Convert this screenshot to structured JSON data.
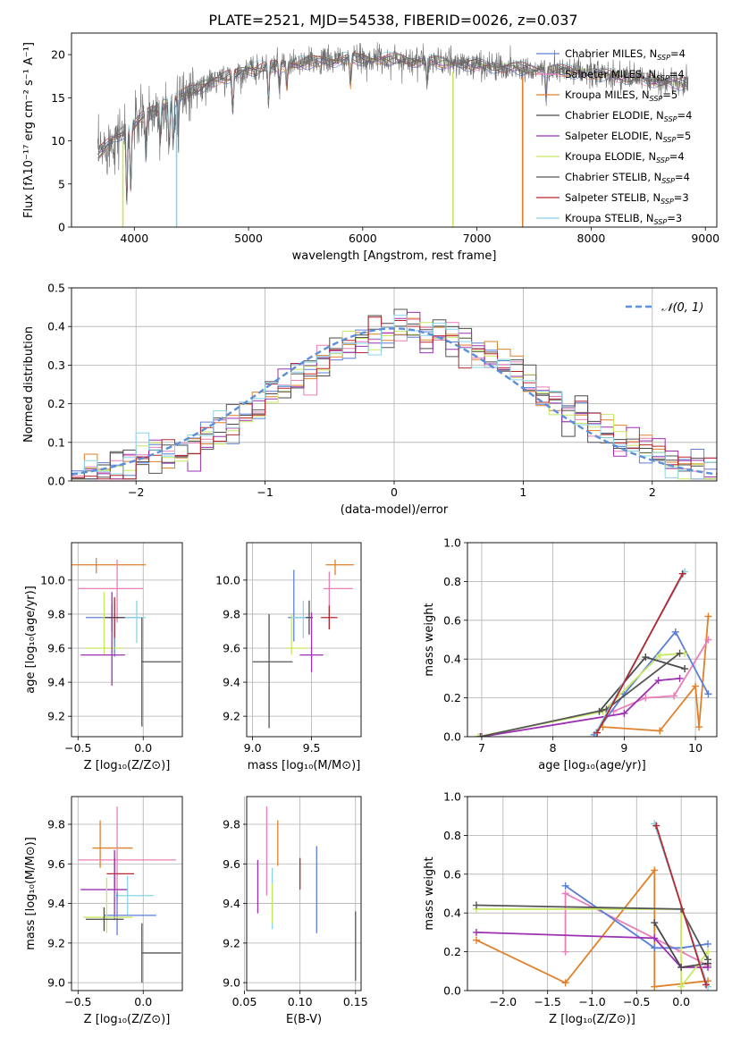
{
  "figure_title": "PLATE=2521, MJD=54538, FIBERID=0026, z=0.037",
  "colors": {
    "Chabrier MILES": "#5b7fd9",
    "Salpeter MILES": "#ea7fb8",
    "Kroupa MILES": "#e0802a",
    "Chabrier ELODIE": "#4a4a4a",
    "Salpeter ELODIE": "#9b30b0",
    "Kroupa ELODIE": "#c7e860",
    "Chabrier STELIB": "#555555",
    "Salpeter STELIB": "#b8272f",
    "Kroupa STELIB": "#8ad4e8"
  },
  "chart_data": [
    {
      "id": "spectrum",
      "type": "line",
      "title": "",
      "xlabel": "wavelength [Angstrom, rest frame]",
      "ylabel": "Flux [fλ10⁻¹⁷ erg cm⁻² s⁻¹ A⁻¹]",
      "xlim": [
        3450,
        9100
      ],
      "ylim": [
        0,
        22.5
      ],
      "xticks": [
        4000,
        5000,
        6000,
        7000,
        8000,
        9000
      ],
      "yticks": [
        0,
        5,
        10,
        15,
        20
      ],
      "legend_position": "top-right",
      "legend": [
        {
          "label": "Chabrier MILES, N",
          "sub": "SSP",
          "suffix": "=4",
          "key": "Chabrier MILES"
        },
        {
          "label": "Salpeter MILES, N",
          "sub": "SSP",
          "suffix": "=4",
          "key": "Salpeter MILES"
        },
        {
          "label": "Kroupa MILES, N",
          "sub": "SSP",
          "suffix": "=5",
          "key": "Kroupa MILES"
        },
        {
          "label": "Chabrier ELODIE, N",
          "sub": "SSP",
          "suffix": "=4",
          "key": "Chabrier ELODIE"
        },
        {
          "label": "Salpeter ELODIE, N",
          "sub": "SSP",
          "suffix": "=5",
          "key": "Salpeter ELODIE"
        },
        {
          "label": "Kroupa ELODIE, N",
          "sub": "SSP",
          "suffix": "=4",
          "key": "Kroupa ELODIE"
        },
        {
          "label": "Chabrier STELIB, N",
          "sub": "SSP",
          "suffix": "=4",
          "key": "Chabrier STELIB"
        },
        {
          "label": "Salpeter STELIB, N",
          "sub": "SSP",
          "suffix": "=3",
          "key": "Salpeter STELIB"
        },
        {
          "label": "Kroupa STELIB, N",
          "sub": "SSP",
          "suffix": "=3",
          "key": "Kroupa STELIB"
        }
      ],
      "continuum": [
        [
          3680,
          8.5
        ],
        [
          3800,
          10.0
        ],
        [
          3950,
          11.5
        ],
        [
          4100,
          13.0
        ],
        [
          4300,
          14.5
        ],
        [
          4500,
          15.8
        ],
        [
          4700,
          17.0
        ],
        [
          4900,
          17.8
        ],
        [
          5100,
          18.5
        ],
        [
          5300,
          18.8
        ],
        [
          5600,
          19.2
        ],
        [
          5900,
          19.5
        ],
        [
          6200,
          19.5
        ],
        [
          6500,
          19.3
        ],
        [
          6800,
          19.0
        ],
        [
          7100,
          18.7
        ],
        [
          7400,
          18.4
        ],
        [
          7700,
          18.2
        ],
        [
          8000,
          17.8
        ],
        [
          8300,
          17.4
        ],
        [
          8600,
          16.9
        ],
        [
          8850,
          16.6
        ]
      ],
      "absorption_lines": [
        [
          3934,
          8
        ],
        [
          3969,
          7
        ],
        [
          4102,
          5
        ],
        [
          4227,
          4
        ],
        [
          4305,
          5
        ],
        [
          4340,
          5
        ],
        [
          4384,
          4
        ],
        [
          4861,
          4
        ],
        [
          5175,
          4
        ],
        [
          5270,
          2.5
        ],
        [
          5335,
          2.5
        ],
        [
          5893,
          3
        ],
        [
          6563,
          2.5
        ],
        [
          7605,
          3
        ]
      ],
      "model_dropouts": [
        {
          "key": "Kroupa ELODIE",
          "x": 3900
        },
        {
          "key": "Kroupa STELIB",
          "x": 4370
        },
        {
          "key": "Kroupa ELODIE",
          "x": 6790
        },
        {
          "key": "Kroupa MILES",
          "x": 7400
        }
      ],
      "observed_noise_color": "#6b6b6b"
    },
    {
      "id": "residuals",
      "type": "step",
      "xlabel": "(data-model)/error",
      "ylabel": "Normed distribution",
      "xlim": [
        -2.5,
        2.5
      ],
      "ylim": [
        0,
        0.5
      ],
      "xticks": [
        -2,
        -1,
        0,
        1,
        2
      ],
      "yticks": [
        0.0,
        0.1,
        0.2,
        0.3,
        0.4,
        0.5
      ],
      "bin_width": 0.1,
      "bin_start": -2.5,
      "legend": {
        "label": "𝒩(0, 1)",
        "color": "#5b8fd9"
      },
      "legend_position": "top-right",
      "grid": true
    },
    {
      "id": "age_vs_Z",
      "type": "errorbar",
      "xlabel": "Z [log₁₀(Z/Z⊙)]",
      "ylabel": "age [log₁₀(age/yr)]",
      "xlim": [
        -0.55,
        0.3
      ],
      "ylim": [
        9.08,
        10.22
      ],
      "xticks": [
        -0.5,
        0.0
      ],
      "yticks": [
        9.2,
        9.4,
        9.6,
        9.8,
        10.0
      ],
      "points": [
        {
          "key": "Kroupa MILES",
          "x": -0.36,
          "xerr": [
            0.2,
            0.38
          ],
          "y": 10.09,
          "yerr": [
            0.05,
            0.04
          ]
        },
        {
          "key": "Salpeter MILES",
          "x": -0.2,
          "xerr": [
            0.3,
            0.2
          ],
          "y": 9.95,
          "yerr": [
            0.2,
            0.17
          ]
        },
        {
          "key": "Chabrier MILES",
          "x": -0.22,
          "xerr": [
            0.22,
            0.2
          ],
          "y": 9.78,
          "yerr": [
            0.23,
            0.09
          ]
        },
        {
          "key": "Kroupa STELIB",
          "x": -0.05,
          "xerr": [
            0.1,
            0.07
          ],
          "y": 9.78,
          "yerr": [
            0.15,
            0.1
          ]
        },
        {
          "key": "Salpeter STELIB",
          "x": -0.22,
          "xerr": [
            0.05,
            0.05
          ],
          "y": 9.78,
          "yerr": [
            0.12,
            0.12
          ]
        },
        {
          "key": "Chabrier ELODIE",
          "x": -0.24,
          "xerr": [
            0.06,
            0.1
          ],
          "y": 9.78,
          "yerr": [
            0.08,
            0.08
          ]
        },
        {
          "key": "Kroupa ELODIE",
          "x": -0.3,
          "xerr": [
            0.15,
            0.15
          ],
          "y": 9.6,
          "yerr": [
            0.04,
            0.33
          ]
        },
        {
          "key": "Salpeter ELODIE",
          "x": -0.24,
          "xerr": [
            0.24,
            0.1
          ],
          "y": 9.56,
          "yerr": [
            0.18,
            0.37
          ]
        },
        {
          "key": "Chabrier STELIB",
          "x": -0.01,
          "xerr": [
            0.0,
            0.3
          ],
          "y": 9.52,
          "yerr": [
            0.38,
            0.26
          ]
        }
      ]
    },
    {
      "id": "age_vs_mass",
      "type": "errorbar",
      "xlabel": "mass [log₁₀(M/M⊙)]",
      "ylabel": "",
      "xlim": [
        8.95,
        9.92
      ],
      "ylim": [
        9.08,
        10.22
      ],
      "xticks": [
        9.0,
        9.5
      ],
      "yticks": [
        9.2,
        9.4,
        9.6,
        9.8,
        10.0
      ],
      "points": [
        {
          "key": "Kroupa MILES",
          "x": 9.7,
          "xerr": [
            0.08,
            0.16
          ],
          "y": 10.09,
          "yerr": [
            0.06,
            0.03
          ]
        },
        {
          "key": "Salpeter MILES",
          "x": 9.65,
          "xerr": [
            0.05,
            0.2
          ],
          "y": 9.95,
          "yerr": [
            0.24,
            0.1
          ]
        },
        {
          "key": "Chabrier MILES",
          "x": 9.35,
          "xerr": [
            0.05,
            0.1
          ],
          "y": 9.78,
          "yerr": [
            0.14,
            0.28
          ]
        },
        {
          "key": "Kroupa STELIB",
          "x": 9.43,
          "xerr": [
            0.1,
            0.07
          ],
          "y": 9.78,
          "yerr": [
            0.12,
            0.1
          ]
        },
        {
          "key": "Salpeter STELIB",
          "x": 9.65,
          "xerr": [
            0.07,
            0.07
          ],
          "y": 9.78,
          "yerr": [
            0.07,
            0.07
          ]
        },
        {
          "key": "Chabrier ELODIE",
          "x": 9.48,
          "xerr": [
            0.03,
            0.03
          ],
          "y": 9.78,
          "yerr": [
            0.1,
            0.1
          ]
        },
        {
          "key": "Kroupa ELODIE",
          "x": 9.33,
          "xerr": [
            0.05,
            0.14
          ],
          "y": 9.6,
          "yerr": [
            0.04,
            0.2
          ]
        },
        {
          "key": "Salpeter ELODIE",
          "x": 9.5,
          "xerr": [
            0.1,
            0.1
          ],
          "y": 9.56,
          "yerr": [
            0.1,
            0.25
          ]
        },
        {
          "key": "Chabrier STELIB",
          "x": 9.14,
          "xerr": [
            0.14,
            0.2
          ],
          "y": 9.52,
          "yerr": [
            0.39,
            0.28
          ]
        }
      ]
    },
    {
      "id": "weight_vs_age",
      "type": "line",
      "xlabel": "age [log₁₀(age/yr)]",
      "ylabel": "mass weight",
      "xlim": [
        6.8,
        10.3
      ],
      "ylim": [
        0,
        1.0
      ],
      "xticks": [
        7,
        8,
        9,
        10
      ],
      "yticks": [
        0.0,
        0.2,
        0.4,
        0.6,
        0.8,
        1.0
      ],
      "grid": true,
      "series": [
        {
          "key": "Kroupa MILES",
          "x": [
            8.7,
            9.5,
            10.0,
            10.05,
            10.18
          ],
          "y": [
            0.05,
            0.03,
            0.26,
            0.05,
            0.62
          ]
        },
        {
          "key": "Salpeter MILES",
          "x": [
            8.85,
            9.3,
            9.7,
            10.18
          ],
          "y": [
            0.13,
            0.2,
            0.21,
            0.5
          ]
        },
        {
          "key": "Chabrier MILES",
          "x": [
            8.58,
            9.0,
            9.72,
            10.18
          ],
          "y": [
            0.01,
            0.22,
            0.54,
            0.22
          ]
        },
        {
          "key": "Salpeter ELODIE",
          "x": [
            7.0,
            9.0,
            9.48,
            9.78
          ],
          "y": [
            0.0,
            0.12,
            0.29,
            0.3
          ]
        },
        {
          "key": "Kroupa ELODIE",
          "x": [
            6.95,
            8.7,
            9.5,
            9.85
          ],
          "y": [
            0.0,
            0.13,
            0.42,
            0.43
          ]
        },
        {
          "key": "Chabrier ELODIE",
          "x": [
            8.65,
            9.3,
            9.85
          ],
          "y": [
            0.13,
            0.41,
            0.35
          ]
        },
        {
          "key": "Chabrier STELIB",
          "x": [
            6.98,
            8.75,
            9.78
          ],
          "y": [
            0.0,
            0.14,
            0.43
          ]
        },
        {
          "key": "Kroupa STELIB",
          "x": [
            8.6,
            9.85
          ],
          "y": [
            0.02,
            0.85
          ]
        },
        {
          "key": "Salpeter STELIB",
          "x": [
            8.62,
            9.82
          ],
          "y": [
            0.02,
            0.84
          ]
        }
      ]
    },
    {
      "id": "mass_vs_Z",
      "type": "errorbar",
      "xlabel": "Z [log₁₀(Z/Z⊙)]",
      "ylabel": "mass [log₁₀(M/M⊙)]",
      "xlim": [
        -0.55,
        0.3
      ],
      "ylim": [
        8.96,
        9.94
      ],
      "xticks": [
        -0.5,
        0.0
      ],
      "yticks": [
        9.0,
        9.2,
        9.4,
        9.6,
        9.8
      ],
      "points": [
        {
          "key": "Kroupa MILES",
          "x": -0.33,
          "xerr": [
            0.06,
            0.25
          ],
          "y": 9.68,
          "yerr": [
            0.1,
            0.14
          ]
        },
        {
          "key": "Salpeter MILES",
          "x": -0.2,
          "xerr": [
            0.3,
            0.45
          ],
          "y": 9.62,
          "yerr": [
            0.2,
            0.27
          ]
        },
        {
          "key": "Salpeter STELIB",
          "x": -0.22,
          "xerr": [
            0.06,
            0.15
          ],
          "y": 9.55,
          "yerr": [
            0.08,
            0.08
          ]
        },
        {
          "key": "Salpeter ELODIE",
          "x": -0.22,
          "xerr": [
            0.26,
            0.1
          ],
          "y": 9.47,
          "yerr": [
            0.15,
            0.2
          ]
        },
        {
          "key": "Kroupa STELIB",
          "x": -0.12,
          "xerr": [
            0.1,
            0.2
          ],
          "y": 9.44,
          "yerr": [
            0.1,
            0.1
          ]
        },
        {
          "key": "Chabrier MILES",
          "x": -0.2,
          "xerr": [
            0.1,
            0.3
          ],
          "y": 9.34,
          "yerr": [
            0.1,
            0.12
          ]
        },
        {
          "key": "Kroupa ELODIE",
          "x": -0.28,
          "xerr": [
            0.18,
            0.2
          ],
          "y": 9.33,
          "yerr": [
            0.08,
            0.2
          ]
        },
        {
          "key": "Chabrier ELODIE",
          "x": -0.3,
          "xerr": [
            0.14,
            0.15
          ],
          "y": 9.32,
          "yerr": [
            0.06,
            0.06
          ]
        },
        {
          "key": "Chabrier STELIB",
          "x": -0.01,
          "xerr": [
            0.0,
            0.3
          ],
          "y": 9.15,
          "yerr": [
            0.15,
            0.15
          ]
        }
      ]
    },
    {
      "id": "mass_vs_EBV",
      "type": "errorbar",
      "xlabel": "E(B-V)",
      "ylabel": "",
      "xlim": [
        0.052,
        0.155
      ],
      "ylim": [
        8.96,
        9.94
      ],
      "xticks": [
        0.05,
        0.1,
        0.15
      ],
      "yticks": [
        9.0,
        9.2,
        9.4,
        9.6,
        9.8
      ],
      "points": [
        {
          "key": "Salpeter MILES",
          "x": 0.07,
          "y": 9.62,
          "yerr": [
            0.18,
            0.27
          ]
        },
        {
          "key": "Kroupa MILES",
          "x": 0.08,
          "y": 9.68,
          "yerr": [
            0.09,
            0.14
          ]
        },
        {
          "key": "Salpeter ELODIE",
          "x": 0.062,
          "y": 9.47,
          "yerr": [
            0.12,
            0.15
          ]
        },
        {
          "key": "Kroupa STELIB",
          "x": 0.075,
          "y": 9.44,
          "yerr": [
            0.17,
            0.14
          ]
        },
        {
          "key": "Kroupa ELODIE",
          "x": 0.075,
          "y": 9.4,
          "yerr": [
            0.1,
            0.1
          ]
        },
        {
          "key": "Salpeter STELIB",
          "x": 0.1,
          "y": 9.55,
          "yerr": [
            0.08,
            0.08
          ]
        },
        {
          "key": "Chabrier MILES",
          "x": 0.115,
          "y": 9.45,
          "yerr": [
            0.2,
            0.24
          ]
        },
        {
          "key": "Chabrier STELIB",
          "x": 0.15,
          "y": 9.15,
          "yerr": [
            0.14,
            0.21
          ]
        }
      ]
    },
    {
      "id": "weight_vs_Z",
      "type": "line",
      "xlabel": "Z [log₁₀(Z/Z⊙)]",
      "ylabel": "mass weight",
      "xlim": [
        -2.4,
        0.4
      ],
      "ylim": [
        0,
        1.0
      ],
      "xticks": [
        -2.0,
        -1.5,
        -1.0,
        -0.5,
        0.0
      ],
      "yticks": [
        0.0,
        0.2,
        0.4,
        0.6,
        0.8,
        1.0
      ],
      "grid": true,
      "series": [
        {
          "key": "Kroupa MILES",
          "x": [
            -2.3,
            -1.3,
            -0.3,
            -0.3,
            0.3
          ],
          "y": [
            0.26,
            0.04,
            0.62,
            0.02,
            0.05
          ]
        },
        {
          "key": "Salpeter MILES",
          "x": [
            -1.3,
            -1.3,
            0.0,
            0.3
          ],
          "y": [
            0.2,
            0.5,
            0.2,
            0.13
          ]
        },
        {
          "key": "Chabrier MILES",
          "x": [
            -1.3,
            -0.3,
            0.0,
            0.3
          ],
          "y": [
            0.54,
            0.22,
            0.22,
            0.24
          ]
        },
        {
          "key": "Salpeter ELODIE",
          "x": [
            -2.3,
            -0.3,
            0.0,
            0.3
          ],
          "y": [
            0.3,
            0.27,
            0.12,
            0.12
          ]
        },
        {
          "key": "Kroupa ELODIE",
          "x": [
            -2.3,
            0.0,
            0.0,
            0.3
          ],
          "y": [
            0.42,
            0.42,
            0.02,
            0.2
          ]
        },
        {
          "key": "Chabrier ELODIE",
          "x": [
            -0.3,
            0.0,
            0.3
          ],
          "y": [
            0.35,
            0.12,
            0.14
          ]
        },
        {
          "key": "Chabrier STELIB",
          "x": [
            -2.3,
            0.0,
            0.3
          ],
          "y": [
            0.44,
            0.42,
            0.16
          ]
        },
        {
          "key": "Kroupa STELIB",
          "x": [
            -0.3,
            0.3
          ],
          "y": [
            0.86,
            0.02
          ]
        },
        {
          "key": "Salpeter STELIB",
          "x": [
            -0.28,
            0.28
          ],
          "y": [
            0.85,
            0.03
          ]
        }
      ]
    }
  ]
}
